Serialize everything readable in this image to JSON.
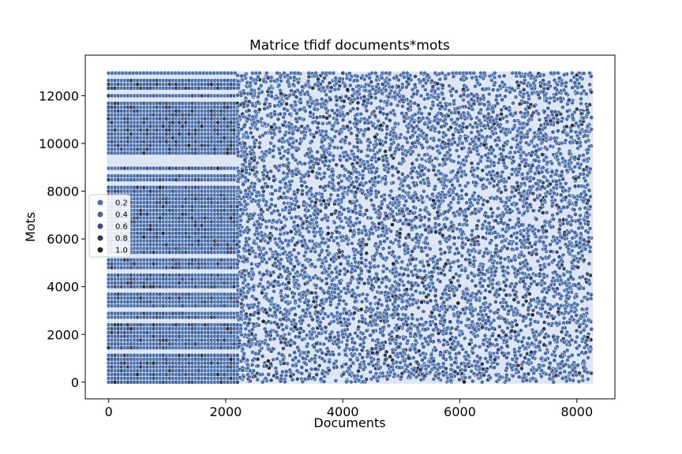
{
  "chart_data": {
    "type": "scatter",
    "title": "Matrice tfidf documents*mots",
    "xlabel": "Documents",
    "ylabel": "Mots",
    "xlim": [
      -400,
      8650
    ],
    "ylim": [
      -700,
      13700
    ],
    "xticks": [
      0,
      2000,
      4000,
      6000,
      8000
    ],
    "yticks": [
      0,
      2000,
      4000,
      6000,
      8000,
      10000,
      12000
    ],
    "grid": false,
    "legend": {
      "placement": "center-left",
      "entries": [
        {
          "label": "0.2",
          "value": 0.2,
          "color": "#4c72b0"
        },
        {
          "label": "0.4",
          "value": 0.4,
          "color": "#44649c"
        },
        {
          "label": "0.6",
          "value": 0.6,
          "color": "#3a4f78"
        },
        {
          "label": "0.8",
          "value": 0.8,
          "color": "#2f3a52"
        },
        {
          "label": "1.0",
          "value": 1.0,
          "color": "#262626"
        }
      ]
    },
    "series": [
      {
        "description_points": "dense scatter of (document index, word index) pairs colored by tf-idf weight",
        "documents_range": [
          0,
          8250
        ],
        "words_range": [
          0,
          12950
        ],
        "regular_block_documents": [
          0,
          2200
        ],
        "irregular_block_documents": [
          2200,
          8250
        ],
        "marker_color": "#4c72b0",
        "marker_edge": "#ffffff"
      }
    ]
  }
}
